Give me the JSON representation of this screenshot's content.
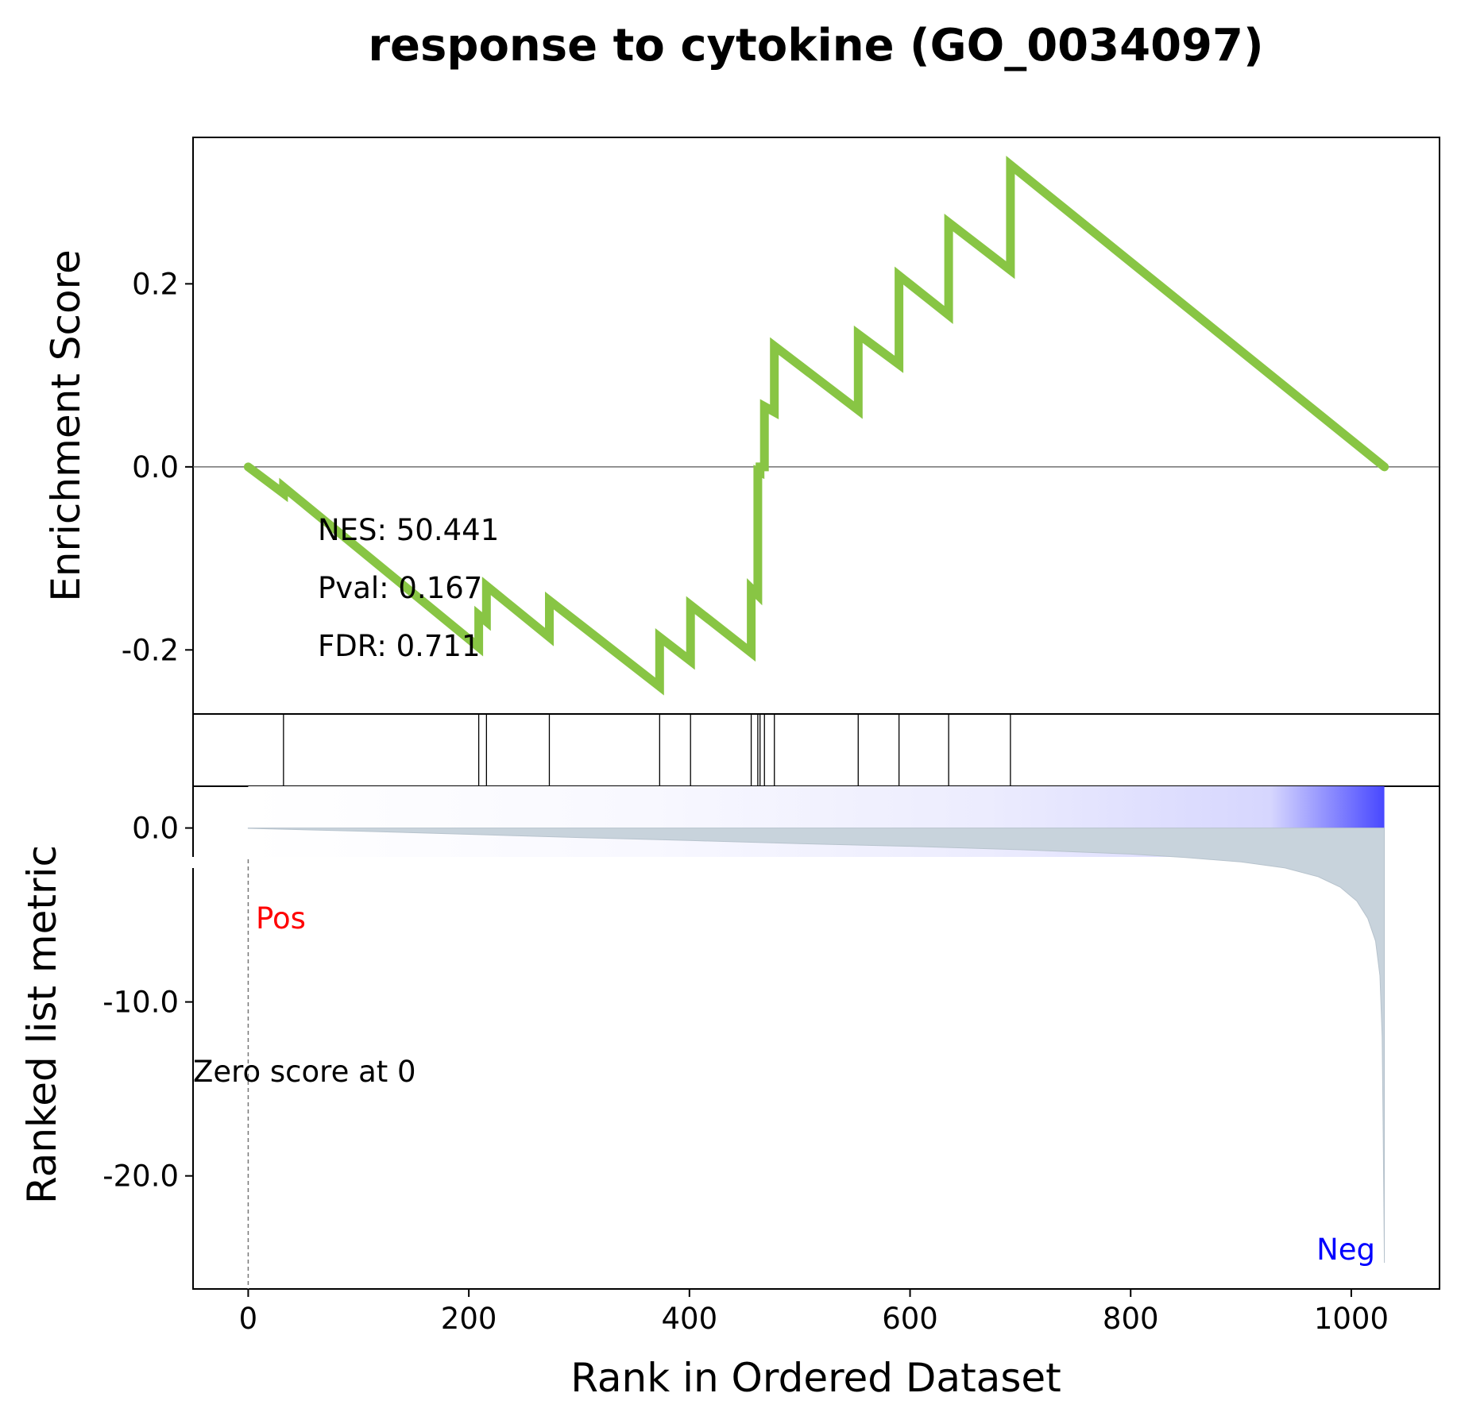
{
  "chart_data": {
    "type": "line",
    "title": "response to cytokine (GO_0034097)",
    "xlabel": "Rank in Ordered Dataset",
    "xlim": [
      -50,
      1080
    ],
    "x_ticks": [
      0,
      200,
      400,
      600,
      800,
      1000
    ],
    "x_tick_labels": [
      "0",
      "200",
      "400",
      "600",
      "800",
      "1000"
    ],
    "colors": {
      "es_line": "#88c544",
      "metric_fill": "#c8d3dc",
      "pos_label": "#ff0000",
      "neg_label": "#0000ff",
      "gradient_start": "#ffffff",
      "gradient_end": "#0000ff"
    },
    "enrichment": {
      "ylabel": "Enrichment Score",
      "ylim": [
        -0.27,
        0.36
      ],
      "y_ticks": [
        -0.2,
        0.0,
        0.2
      ],
      "y_tick_labels": [
        "-0.2",
        "0.0",
        "0.2"
      ],
      "stats": [
        "NES: 50.441",
        "Pval: 0.167",
        "FDR: 0.711"
      ],
      "points": [
        [
          0,
          0.0
        ],
        [
          32,
          -0.029
        ],
        [
          32,
          -0.022
        ],
        [
          209,
          -0.197
        ],
        [
          209,
          -0.162
        ],
        [
          216,
          -0.169
        ],
        [
          216,
          -0.13
        ],
        [
          273,
          -0.186
        ],
        [
          273,
          -0.146
        ],
        [
          373,
          -0.24
        ],
        [
          373,
          -0.186
        ],
        [
          401,
          -0.212
        ],
        [
          401,
          -0.151
        ],
        [
          456,
          -0.203
        ],
        [
          456,
          -0.133
        ],
        [
          462,
          -0.14
        ],
        [
          462,
          -0.005
        ],
        [
          464,
          -0.006
        ],
        [
          464,
          0.0
        ],
        [
          468,
          0.0
        ],
        [
          468,
          0.066
        ],
        [
          477,
          0.06
        ],
        [
          477,
          0.132
        ],
        [
          553,
          0.062
        ],
        [
          553,
          0.145
        ],
        [
          590,
          0.112
        ],
        [
          590,
          0.209
        ],
        [
          635,
          0.166
        ],
        [
          635,
          0.267
        ],
        [
          691,
          0.215
        ],
        [
          691,
          0.33
        ],
        [
          1030,
          0.0
        ]
      ]
    },
    "hits": [
      32,
      209,
      216,
      273,
      373,
      401,
      456,
      462,
      464,
      468,
      477,
      553,
      590,
      635,
      691
    ],
    "ranked_metric": {
      "ylabel": "Ranked list metric",
      "ylim": [
        -26.5,
        2.4
      ],
      "y_ticks": [
        0,
        -10,
        -20
      ],
      "y_tick_labels": [
        "0.0",
        "-10.0",
        "-20.0"
      ],
      "points": [
        [
          0,
          -0.02
        ],
        [
          100,
          -0.18
        ],
        [
          200,
          -0.36
        ],
        [
          300,
          -0.55
        ],
        [
          400,
          -0.72
        ],
        [
          500,
          -0.9
        ],
        [
          600,
          -1.05
        ],
        [
          700,
          -1.25
        ],
        [
          800,
          -1.5
        ],
        [
          850,
          -1.7
        ],
        [
          900,
          -1.95
        ],
        [
          940,
          -2.3
        ],
        [
          970,
          -2.8
        ],
        [
          990,
          -3.4
        ],
        [
          1005,
          -4.2
        ],
        [
          1015,
          -5.2
        ],
        [
          1022,
          -6.5
        ],
        [
          1026,
          -8.5
        ],
        [
          1028,
          -12.0
        ],
        [
          1029,
          -18.0
        ],
        [
          1030,
          -25.0
        ]
      ],
      "pos_label": "Pos",
      "neg_label": "Neg",
      "zero_label": "Zero score at 0",
      "zero_rank": 0
    }
  }
}
